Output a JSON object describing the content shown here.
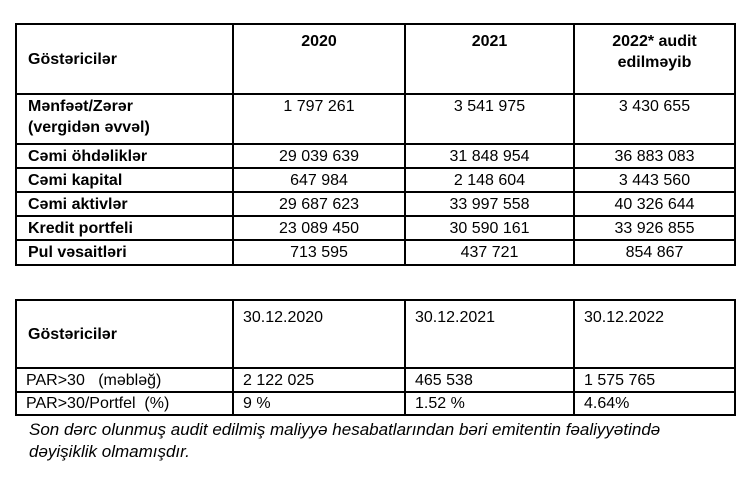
{
  "page": {
    "background": "#ffffff",
    "text_color": "#000000",
    "border_color": "#000000"
  },
  "table1": {
    "header": [
      "Göstəricilər",
      "2020",
      "2021",
      "2022* audit\nedilməyib"
    ],
    "rows": [
      {
        "label": "Mənfəət/Zərər\n(vergidən əvvəl)",
        "values": [
          "1 797 261",
          "3 541 975",
          "3 430 655"
        ]
      },
      {
        "label": "Cəmi öhdəliklər",
        "values": [
          "29 039 639",
          "31 848 954",
          "36 883 083"
        ]
      },
      {
        "label": "Cəmi kapital",
        "values": [
          "647 984",
          "2 148 604",
          "3 443 560"
        ]
      },
      {
        "label": "Cəmi aktivlər",
        "values": [
          "29 687 623",
          "33 997 558",
          "40 326 644"
        ]
      },
      {
        "label": "Kredit portfeli",
        "values": [
          "23 089 450",
          "30 590 161",
          "33 926 855"
        ]
      },
      {
        "label": "Pul vəsaitləri",
        "values": [
          "713 595",
          "437 721",
          "854 867"
        ]
      }
    ]
  },
  "table2": {
    "header": [
      "Göstəricilər",
      "30.12.2020",
      "30.12.2021",
      "30.12.2022"
    ],
    "rows": [
      {
        "label": "PAR>30   (məbləğ)",
        "values": [
          "2 122 025",
          "465 538",
          "1 575 765"
        ]
      },
      {
        "label": "PAR>30/Portfel  (%)",
        "values": [
          "9 %",
          "1.52 %",
          "4.64%"
        ]
      }
    ]
  },
  "footer": {
    "note": "Son dərc olunmuş audit edilmiş maliyyə hesabatlarından bəri emitentin fəaliyyətində dəyişiklik olmamışdır."
  }
}
